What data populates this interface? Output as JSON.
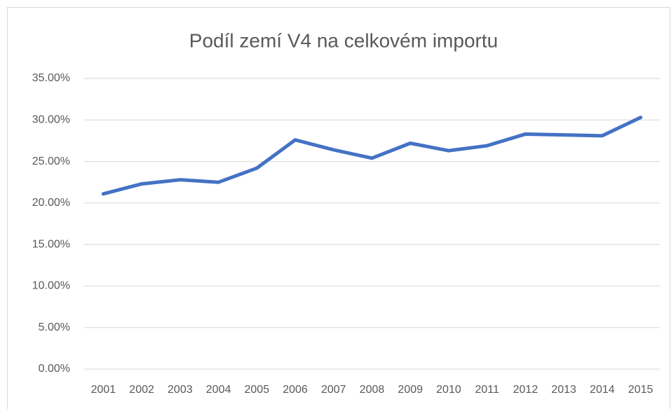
{
  "chart_data": {
    "type": "line",
    "title": "Podíl zemí V4 na celkovém importu",
    "categories": [
      "2001",
      "2002",
      "2003",
      "2004",
      "2005",
      "2006",
      "2007",
      "2008",
      "2009",
      "2010",
      "2011",
      "2012",
      "2013",
      "2014",
      "2015"
    ],
    "series": [
      {
        "color": "#4472c4",
        "values": [
          21.1,
          22.3,
          22.8,
          22.5,
          24.2,
          27.6,
          26.4,
          25.4,
          27.2,
          26.3,
          26.9,
          28.3,
          28.2,
          28.1,
          30.3
        ]
      }
    ],
    "ylim": [
      0,
      35
    ],
    "yticks": [
      {
        "value": 0,
        "label": "0.00%"
      },
      {
        "value": 5,
        "label": "5.00%"
      },
      {
        "value": 10,
        "label": "10.00%"
      },
      {
        "value": 15,
        "label": "15.00%"
      },
      {
        "value": 20,
        "label": "20.00%"
      },
      {
        "value": 25,
        "label": "25.00%"
      },
      {
        "value": 30,
        "label": "30.00%"
      },
      {
        "value": 35,
        "label": "35.00%"
      }
    ],
    "grid": true
  }
}
